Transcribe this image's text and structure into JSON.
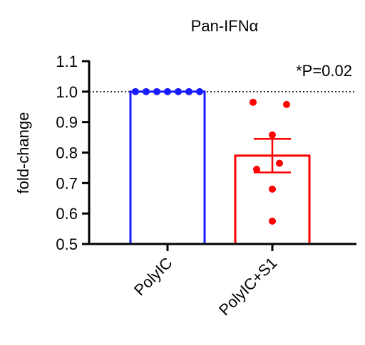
{
  "chart_data": {
    "type": "bar",
    "title": "Pan-IFNα",
    "xlabel": "",
    "ylabel": "fold-change",
    "ylim": [
      0.5,
      1.1
    ],
    "yticks": [
      "0.5",
      "0.6",
      "0.7",
      "0.8",
      "0.9",
      "1.0",
      "1.1"
    ],
    "categories": [
      "PolyIC",
      "PolyIC+S1"
    ],
    "values": [
      1.0,
      0.79
    ],
    "error": [
      0.0,
      0.055
    ],
    "points": [
      [
        1.0,
        1.0,
        1.0,
        1.0,
        1.0,
        1.0,
        1.0
      ],
      [
        0.965,
        0.958,
        0.858,
        0.765,
        0.745,
        0.68,
        0.575
      ]
    ],
    "reference_line": 1.0,
    "annotation": "*P=0.02",
    "colors": [
      "#1a1aff",
      "#ff0000"
    ],
    "grid": false
  }
}
